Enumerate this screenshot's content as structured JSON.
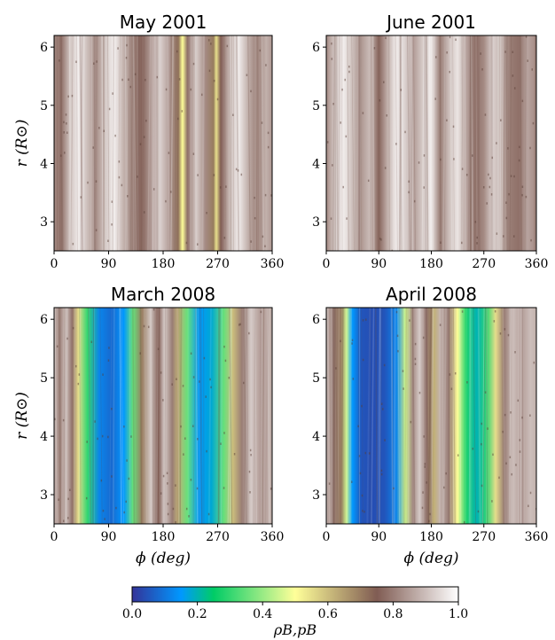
{
  "chart_data": {
    "type": "heatmap",
    "panels": [
      {
        "title": "May 2001",
        "xlim": [
          0,
          360
        ],
        "ylim": [
          2.5,
          6.2
        ],
        "xticks": [
          "0",
          "90",
          "180",
          "270",
          "360"
        ],
        "yticks": [
          "3",
          "4",
          "5",
          "6"
        ],
        "ylabel": "r (R⊙)",
        "xlabel": "",
        "profile": [
          {
            "phi": 0,
            "rho": 0.82
          },
          {
            "phi": 12,
            "rho": 0.78
          },
          {
            "phi": 25,
            "rho": 0.9
          },
          {
            "phi": 40,
            "rho": 0.97
          },
          {
            "phi": 55,
            "rho": 0.9
          },
          {
            "phi": 70,
            "rho": 0.83
          },
          {
            "phi": 85,
            "rho": 0.92
          },
          {
            "phi": 100,
            "rho": 0.97
          },
          {
            "phi": 115,
            "rho": 0.88
          },
          {
            "phi": 130,
            "rho": 0.8
          },
          {
            "phi": 145,
            "rho": 0.76
          },
          {
            "phi": 160,
            "rho": 0.85
          },
          {
            "phi": 175,
            "rho": 0.93
          },
          {
            "phi": 190,
            "rho": 0.85
          },
          {
            "phi": 205,
            "rho": 0.72
          },
          {
            "phi": 212,
            "rho": 0.5
          },
          {
            "phi": 220,
            "rho": 0.78
          },
          {
            "phi": 235,
            "rho": 0.92
          },
          {
            "phi": 250,
            "rho": 0.82
          },
          {
            "phi": 262,
            "rho": 0.7
          },
          {
            "phi": 268,
            "rho": 0.55
          },
          {
            "phi": 275,
            "rho": 0.75
          },
          {
            "phi": 290,
            "rho": 0.9
          },
          {
            "phi": 305,
            "rho": 0.97
          },
          {
            "phi": 320,
            "rho": 0.88
          },
          {
            "phi": 335,
            "rho": 0.8
          },
          {
            "phi": 350,
            "rho": 0.88
          },
          {
            "phi": 360,
            "rho": 0.84
          }
        ]
      },
      {
        "title": "June 2001",
        "xlim": [
          0,
          360
        ],
        "ylim": [
          2.5,
          6.2
        ],
        "xticks": [
          "0",
          "90",
          "180",
          "270",
          "360"
        ],
        "yticks": [
          "3",
          "4",
          "5",
          "6"
        ],
        "ylabel": "",
        "xlabel": "",
        "profile": [
          {
            "phi": 0,
            "rho": 0.82
          },
          {
            "phi": 15,
            "rho": 0.92
          },
          {
            "phi": 30,
            "rho": 0.97
          },
          {
            "phi": 45,
            "rho": 0.9
          },
          {
            "phi": 60,
            "rho": 0.84
          },
          {
            "phi": 75,
            "rho": 0.9
          },
          {
            "phi": 90,
            "rho": 0.76
          },
          {
            "phi": 105,
            "rho": 0.88
          },
          {
            "phi": 120,
            "rho": 0.97
          },
          {
            "phi": 135,
            "rho": 0.93
          },
          {
            "phi": 150,
            "rho": 0.85
          },
          {
            "phi": 165,
            "rho": 0.92
          },
          {
            "phi": 180,
            "rho": 0.97
          },
          {
            "phi": 195,
            "rho": 0.8
          },
          {
            "phi": 210,
            "rho": 0.9
          },
          {
            "phi": 225,
            "rho": 0.96
          },
          {
            "phi": 240,
            "rho": 0.86
          },
          {
            "phi": 255,
            "rho": 0.78
          },
          {
            "phi": 270,
            "rho": 0.82
          },
          {
            "phi": 285,
            "rho": 0.93
          },
          {
            "phi": 300,
            "rho": 0.88
          },
          {
            "phi": 315,
            "rho": 0.8
          },
          {
            "phi": 330,
            "rho": 0.78
          },
          {
            "phi": 345,
            "rho": 0.86
          },
          {
            "phi": 360,
            "rho": 0.82
          }
        ]
      },
      {
        "title": "March 2008",
        "xlim": [
          0,
          360
        ],
        "ylim": [
          2.5,
          6.2
        ],
        "xticks": [
          "0",
          "90",
          "180",
          "270",
          "360"
        ],
        "yticks": [
          "3",
          "4",
          "5",
          "6"
        ],
        "ylabel": "r (R⊙)",
        "xlabel": "ϕ (deg)",
        "profile": [
          {
            "phi": 0,
            "rho": 0.88
          },
          {
            "phi": 10,
            "rho": 0.82
          },
          {
            "phi": 20,
            "rho": 0.9
          },
          {
            "phi": 30,
            "rho": 0.78
          },
          {
            "phi": 40,
            "rho": 0.55
          },
          {
            "phi": 55,
            "rho": 0.3
          },
          {
            "phi": 75,
            "rho": 0.12
          },
          {
            "phi": 95,
            "rho": 0.08
          },
          {
            "phi": 115,
            "rho": 0.15
          },
          {
            "phi": 130,
            "rho": 0.35
          },
          {
            "phi": 145,
            "rho": 0.7
          },
          {
            "phi": 160,
            "rho": 0.92
          },
          {
            "phi": 172,
            "rho": 0.75
          },
          {
            "phi": 182,
            "rho": 0.92
          },
          {
            "phi": 195,
            "rho": 0.8
          },
          {
            "phi": 205,
            "rho": 0.62
          },
          {
            "phi": 220,
            "rho": 0.35
          },
          {
            "phi": 240,
            "rho": 0.15
          },
          {
            "phi": 260,
            "rho": 0.18
          },
          {
            "phi": 280,
            "rho": 0.35
          },
          {
            "phi": 295,
            "rho": 0.6
          },
          {
            "phi": 310,
            "rho": 0.8
          },
          {
            "phi": 325,
            "rho": 0.92
          },
          {
            "phi": 340,
            "rho": 0.85
          },
          {
            "phi": 360,
            "rho": 0.88
          }
        ]
      },
      {
        "title": "April 2008",
        "xlim": [
          0,
          360
        ],
        "ylim": [
          2.5,
          6.2
        ],
        "xticks": [
          "0",
          "90",
          "180",
          "270",
          "360"
        ],
        "yticks": [
          "3",
          "4",
          "5",
          "6"
        ],
        "ylabel": "",
        "xlabel": "ϕ (deg)",
        "profile": [
          {
            "phi": 0,
            "rho": 0.88
          },
          {
            "phi": 12,
            "rho": 0.8
          },
          {
            "phi": 25,
            "rho": 0.7
          },
          {
            "phi": 35,
            "rho": 0.45
          },
          {
            "phi": 45,
            "rho": 0.15
          },
          {
            "phi": 60,
            "rho": 0.05
          },
          {
            "phi": 80,
            "rho": 0.04
          },
          {
            "phi": 100,
            "rho": 0.05
          },
          {
            "phi": 120,
            "rho": 0.12
          },
          {
            "phi": 135,
            "rho": 0.45
          },
          {
            "phi": 148,
            "rho": 0.82
          },
          {
            "phi": 160,
            "rho": 0.92
          },
          {
            "phi": 172,
            "rho": 0.78
          },
          {
            "phi": 185,
            "rho": 0.62
          },
          {
            "phi": 195,
            "rho": 0.88
          },
          {
            "phi": 210,
            "rho": 0.8
          },
          {
            "phi": 225,
            "rho": 0.5
          },
          {
            "phi": 240,
            "rho": 0.28
          },
          {
            "phi": 258,
            "rho": 0.2
          },
          {
            "phi": 275,
            "rho": 0.3
          },
          {
            "phi": 290,
            "rho": 0.55
          },
          {
            "phi": 305,
            "rho": 0.8
          },
          {
            "phi": 320,
            "rho": 0.9
          },
          {
            "phi": 335,
            "rho": 0.85
          },
          {
            "phi": 350,
            "rho": 0.9
          },
          {
            "phi": 360,
            "rho": 0.88
          }
        ]
      }
    ],
    "colorbar": {
      "label": "ρB,pB",
      "range": [
        0.0,
        1.0
      ],
      "ticks": [
        "0.0",
        "0.2",
        "0.4",
        "0.6",
        "0.8",
        "1.0"
      ],
      "colormap": "terrain",
      "stops": [
        {
          "v": 0.0,
          "c": "#333399"
        },
        {
          "v": 0.15,
          "c": "#0098ff"
        },
        {
          "v": 0.25,
          "c": "#00cc66"
        },
        {
          "v": 0.5,
          "c": "#ffff99"
        },
        {
          "v": 0.75,
          "c": "#805c53"
        },
        {
          "v": 1.0,
          "c": "#ffffff"
        }
      ]
    }
  }
}
